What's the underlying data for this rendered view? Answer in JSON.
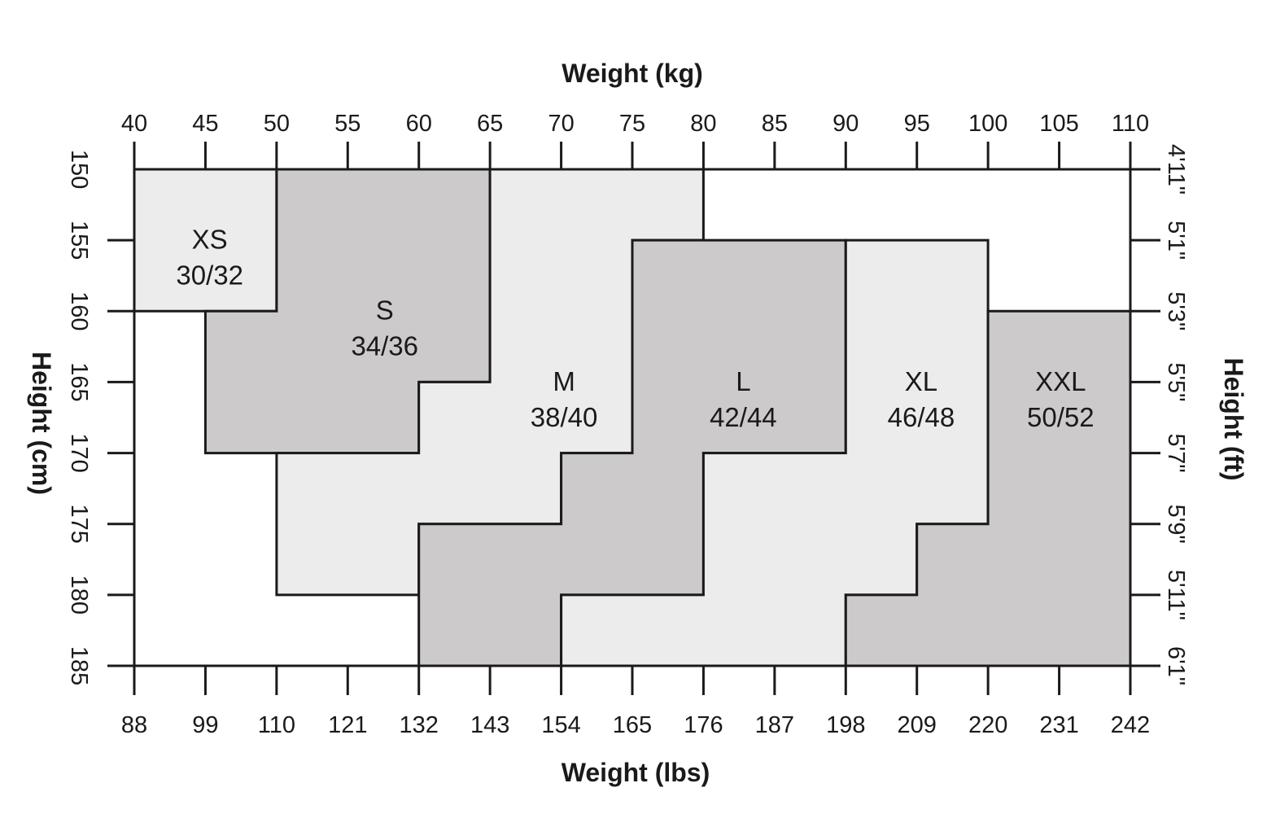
{
  "chart_data": {
    "type": "heatmap",
    "title": "",
    "x_top": {
      "label": "Weight (kg)",
      "ticks": [
        40,
        45,
        50,
        55,
        60,
        65,
        70,
        75,
        80,
        85,
        90,
        95,
        100,
        105,
        110
      ],
      "range": [
        40,
        110
      ]
    },
    "x_bottom": {
      "label": "Weight (lbs)",
      "ticks": [
        "88",
        "99",
        "110",
        "121",
        "132",
        "143",
        "154",
        "165",
        "176",
        "187",
        "198",
        "209",
        "220",
        "231",
        "242"
      ]
    },
    "y_left": {
      "label": "Height (cm)",
      "ticks": [
        150,
        155,
        160,
        165,
        170,
        175,
        180,
        185
      ],
      "range": [
        150,
        185
      ]
    },
    "y_right": {
      "label": "Height (ft)",
      "ticks": [
        "4'11\"",
        "5'1\"",
        "5'3\"",
        "5'5\"",
        "5'7\"",
        "5'9\"",
        "5'11\"",
        "6'1\""
      ]
    },
    "grid": false,
    "colors": {
      "light": "#ececec",
      "dark": "#cdcacb",
      "line": "#1a1a1a"
    },
    "sizes": [
      {
        "name": "XS",
        "sub": "30/32",
        "shade": "light",
        "label_at": [
          45.3,
          155.6
        ],
        "polygon": [
          [
            40,
            150
          ],
          [
            50,
            150
          ],
          [
            50,
            160
          ],
          [
            40,
            160
          ]
        ]
      },
      {
        "name": "S",
        "sub": "34/36",
        "shade": "dark",
        "label_at": [
          57.6,
          160.6
        ],
        "polygon": [
          [
            50,
            150
          ],
          [
            65,
            150
          ],
          [
            65,
            165
          ],
          [
            60,
            165
          ],
          [
            60,
            170
          ],
          [
            45,
            170
          ],
          [
            45,
            160
          ],
          [
            50,
            160
          ]
        ]
      },
      {
        "name": "M",
        "sub": "38/40",
        "shade": "light",
        "label_at": [
          70.2,
          165.6
        ],
        "polygon": [
          [
            65,
            150
          ],
          [
            80,
            150
          ],
          [
            80,
            155
          ],
          [
            75,
            155
          ],
          [
            75,
            170
          ],
          [
            70,
            170
          ],
          [
            70,
            175
          ],
          [
            60,
            175
          ],
          [
            60,
            180
          ],
          [
            50,
            180
          ],
          [
            50,
            170
          ],
          [
            60,
            170
          ],
          [
            60,
            165
          ],
          [
            65,
            165
          ]
        ]
      },
      {
        "name": "L",
        "sub": "42/44",
        "shade": "dark",
        "label_at": [
          82.8,
          165.6
        ],
        "polygon": [
          [
            75,
            155
          ],
          [
            90,
            155
          ],
          [
            90,
            170
          ],
          [
            80,
            170
          ],
          [
            80,
            180
          ],
          [
            70,
            180
          ],
          [
            70,
            185
          ],
          [
            60,
            185
          ],
          [
            60,
            175
          ],
          [
            70,
            175
          ],
          [
            70,
            170
          ],
          [
            75,
            170
          ]
        ]
      },
      {
        "name": "XL",
        "sub": "46/48",
        "shade": "light",
        "label_at": [
          95.3,
          165.6
        ],
        "polygon": [
          [
            90,
            155
          ],
          [
            100,
            155
          ],
          [
            100,
            175
          ],
          [
            95,
            175
          ],
          [
            95,
            180
          ],
          [
            90,
            180
          ],
          [
            90,
            185
          ],
          [
            70,
            185
          ],
          [
            70,
            180
          ],
          [
            80,
            180
          ],
          [
            80,
            170
          ],
          [
            90,
            170
          ]
        ]
      },
      {
        "name": "XXL",
        "sub": "50/52",
        "shade": "dark",
        "label_at": [
          105.1,
          165.6
        ],
        "polygon": [
          [
            100,
            160
          ],
          [
            110,
            160
          ],
          [
            110,
            185
          ],
          [
            90,
            185
          ],
          [
            90,
            180
          ],
          [
            95,
            180
          ],
          [
            95,
            175
          ],
          [
            100,
            175
          ]
        ]
      }
    ]
  }
}
